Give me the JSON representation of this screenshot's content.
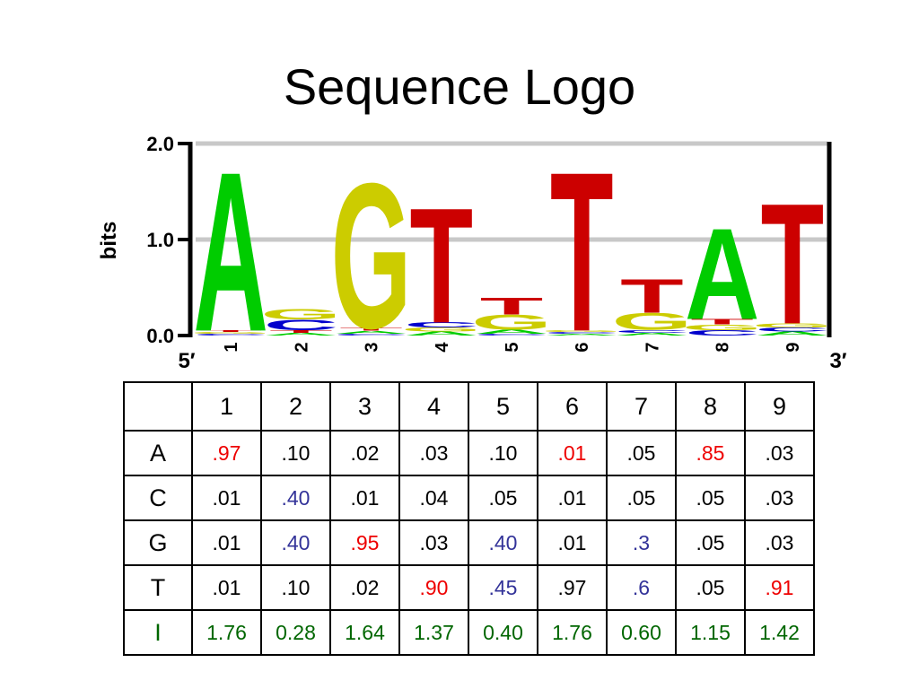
{
  "title": "Sequence Logo",
  "colors": {
    "A": "#00cc00",
    "C": "#0000cc",
    "G": "#cccc00",
    "T": "#cc0000",
    "info": "#006600",
    "hi_red": "#ee0000",
    "hi_blue": "#333399",
    "grid": "#c8c8c8"
  },
  "chart_data": {
    "type": "sequence-logo",
    "ylabel": "bits",
    "ylim": [
      0,
      2.0
    ],
    "yticks": [
      "0.0",
      "1.0",
      "2.0"
    ],
    "grid": true,
    "end_labels": {
      "left": "5′",
      "right": "3′"
    },
    "positions": [
      "1",
      "2",
      "3",
      "4",
      "5",
      "6",
      "7",
      "8",
      "9"
    ],
    "letters": [
      "A",
      "C",
      "G",
      "T"
    ],
    "probabilities": {
      "A": [
        0.97,
        0.1,
        0.02,
        0.03,
        0.1,
        0.01,
        0.05,
        0.85,
        0.03
      ],
      "C": [
        0.01,
        0.4,
        0.01,
        0.04,
        0.05,
        0.01,
        0.05,
        0.05,
        0.03
      ],
      "G": [
        0.01,
        0.4,
        0.95,
        0.03,
        0.4,
        0.01,
        0.3,
        0.05,
        0.03
      ],
      "T": [
        0.01,
        0.1,
        0.02,
        0.9,
        0.45,
        0.97,
        0.6,
        0.05,
        0.91
      ]
    },
    "information": [
      1.76,
      0.28,
      1.64,
      1.37,
      0.4,
      1.76,
      0.6,
      1.15,
      1.42
    ]
  },
  "table": {
    "header": [
      "",
      "1",
      "2",
      "3",
      "4",
      "5",
      "6",
      "7",
      "8",
      "9"
    ],
    "rows": [
      {
        "label": "A",
        "label_color": "black",
        "cells": [
          {
            "t": ".97",
            "c": "red"
          },
          {
            "t": ".10"
          },
          {
            "t": ".02"
          },
          {
            "t": ".03"
          },
          {
            "t": ".10"
          },
          {
            "t": ".01",
            "c": "red"
          },
          {
            "t": ".05"
          },
          {
            "t": ".85",
            "c": "red"
          },
          {
            "t": ".03"
          }
        ]
      },
      {
        "label": "C",
        "label_color": "black",
        "cells": [
          {
            "t": ".01"
          },
          {
            "t": ".40",
            "c": "blue"
          },
          {
            "t": ".01"
          },
          {
            "t": ".04"
          },
          {
            "t": ".05"
          },
          {
            "t": ".01"
          },
          {
            "t": ".05"
          },
          {
            "t": ".05"
          },
          {
            "t": ".03"
          }
        ]
      },
      {
        "label": "G",
        "label_color": "black",
        "cells": [
          {
            "t": ".01"
          },
          {
            "t": ".40",
            "c": "blue"
          },
          {
            "t": ".95",
            "c": "red"
          },
          {
            "t": ".03"
          },
          {
            "t": ".40",
            "c": "blue"
          },
          {
            "t": ".01"
          },
          {
            "t": ".3",
            "c": "blue"
          },
          {
            "t": ".05"
          },
          {
            "t": ".03"
          }
        ]
      },
      {
        "label": "T",
        "label_color": "black",
        "cells": [
          {
            "t": ".01"
          },
          {
            "t": ".10"
          },
          {
            "t": ".02"
          },
          {
            "t": ".90",
            "c": "red"
          },
          {
            "t": ".45",
            "c": "blue"
          },
          {
            "t": ".97"
          },
          {
            "t": ".6",
            "c": "blue"
          },
          {
            "t": ".05"
          },
          {
            "t": ".91",
            "c": "red"
          }
        ]
      },
      {
        "label": "I",
        "label_color": "green",
        "cells": [
          {
            "t": "1.76",
            "c": "green"
          },
          {
            "t": "0.28",
            "c": "green"
          },
          {
            "t": "1.64",
            "c": "green"
          },
          {
            "t": "1.37",
            "c": "green"
          },
          {
            "t": "0.40",
            "c": "green"
          },
          {
            "t": "1.76",
            "c": "green"
          },
          {
            "t": "0.60",
            "c": "green"
          },
          {
            "t": "1.15",
            "c": "green"
          },
          {
            "t": "1.42",
            "c": "green"
          }
        ]
      }
    ]
  }
}
